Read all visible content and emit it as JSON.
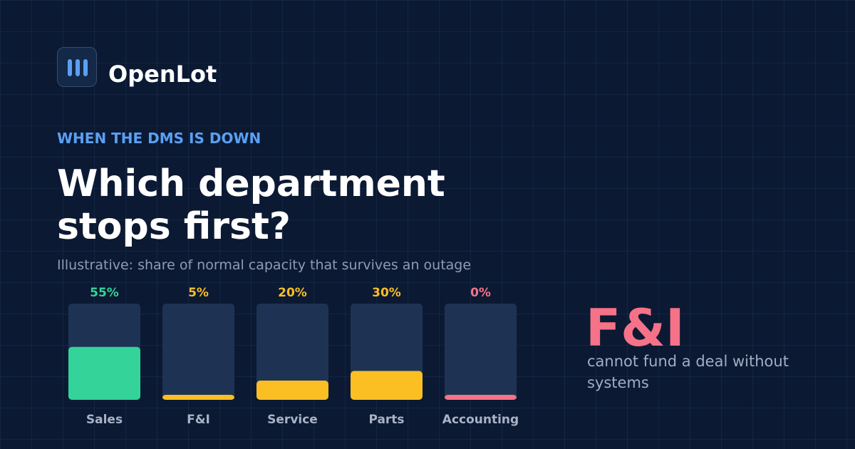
{
  "brand": {
    "name": "OpenLot",
    "logo_icon": "bar-chart-icon"
  },
  "eyebrow": "WHEN THE DMS IS DOWN",
  "headline": "Which department stops first?",
  "subtitle": "Illustrative: share of normal capacity that survives an outage",
  "colors": {
    "background": "#0b1933",
    "accent_blue": "#5aa0f2",
    "track": "#1e3354",
    "green": "#34d399",
    "amber": "#fbbf24",
    "red": "#f57288"
  },
  "chart_data": {
    "type": "bar",
    "categories": [
      "Sales",
      "F&I",
      "Service",
      "Parts",
      "Accounting"
    ],
    "values": [
      55,
      5,
      20,
      30,
      0
    ],
    "value_labels": [
      "55%",
      "5%",
      "20%",
      "30%",
      "0%"
    ],
    "unit": "%",
    "ylim": [
      0,
      100
    ],
    "bar_colors": [
      "#34d399",
      "#fbbf24",
      "#fbbf24",
      "#fbbf24",
      "#f57288"
    ],
    "grid": false,
    "legend": "none"
  },
  "callout": {
    "title": "F&I",
    "body": "cannot fund a deal without systems"
  }
}
